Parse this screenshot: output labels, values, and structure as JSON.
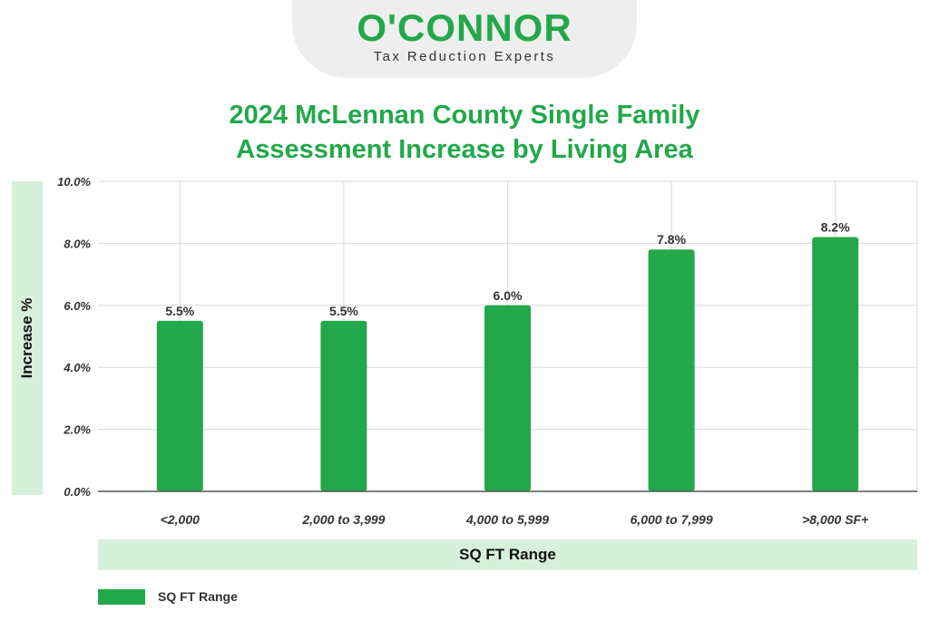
{
  "logo": {
    "name": "O'CONNOR",
    "tagline": "Tax Reduction Experts"
  },
  "colors": {
    "accent": "#22a84a",
    "band": "#d6f0da",
    "grid": "#d9d9d9",
    "text": "#333333"
  },
  "chart_data": {
    "type": "bar",
    "title": "2024 McLennan County Single Family Assessment Increase by Living Area",
    "title_lines": [
      "2024 McLennan County Single Family",
      "Assessment Increase by Living Area"
    ],
    "xlabel": "SQ FT Range",
    "ylabel": "Increase %",
    "categories": [
      "<2,000",
      "2,000 to 3,999",
      "4,000 to 5,999",
      "6,000 to 7,999",
      ">8,000 SF+"
    ],
    "series": [
      {
        "name": "SQ FT Range",
        "values": [
          5.5,
          5.5,
          6.0,
          7.8,
          8.2
        ],
        "labels": [
          "5.5%",
          "5.5%",
          "6.0%",
          "7.8%",
          "8.2%"
        ]
      }
    ],
    "ylim": [
      0,
      10
    ],
    "yticks": [
      0,
      2,
      4,
      6,
      8,
      10
    ],
    "ytick_labels": [
      "0.0%",
      "2.0%",
      "4.0%",
      "6.0%",
      "8.0%",
      "10.0%"
    ],
    "grid": true,
    "legend": "bottom-left"
  }
}
